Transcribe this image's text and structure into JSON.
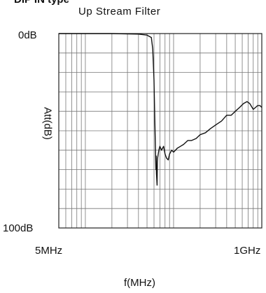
{
  "header": {
    "clipped_title": "DIP IN type"
  },
  "chart_data": {
    "type": "line",
    "title": "Up Stream Filter",
    "xlabel": "f(MHz)",
    "ylabel": "Att(dB)",
    "x_scale": "log",
    "xlim_mhz": [
      5,
      1000
    ],
    "xtick_labels": [
      "5MHz",
      "1GHz"
    ],
    "ylim_db": [
      0,
      100
    ],
    "ytick_labels": [
      "0dB",
      "100dB"
    ],
    "y_direction": "attenuation increases downward",
    "grid": true,
    "series": [
      {
        "values": [
          [
            5,
            0
          ],
          [
            20,
            0
          ],
          [
            40,
            0.3
          ],
          [
            50,
            0.8
          ],
          [
            56,
            2
          ],
          [
            58,
            8
          ],
          [
            60,
            24
          ],
          [
            61,
            40
          ],
          [
            62,
            55
          ],
          [
            62.5,
            62
          ],
          [
            63,
            70
          ],
          [
            63.5,
            63
          ],
          [
            64,
            72
          ],
          [
            65,
            78
          ],
          [
            65.5,
            66
          ],
          [
            66,
            64
          ],
          [
            68,
            60
          ],
          [
            70,
            58
          ],
          [
            73,
            60
          ],
          [
            77,
            58
          ],
          [
            80,
            62
          ],
          [
            83,
            64
          ],
          [
            87,
            65
          ],
          [
            90,
            62
          ],
          [
            95,
            60
          ],
          [
            100,
            61
          ],
          [
            110,
            59
          ],
          [
            120,
            58
          ],
          [
            130,
            57
          ],
          [
            145,
            55
          ],
          [
            160,
            55
          ],
          [
            180,
            54
          ],
          [
            200,
            52
          ],
          [
            230,
            51
          ],
          [
            260,
            49
          ],
          [
            300,
            47
          ],
          [
            350,
            45
          ],
          [
            400,
            42
          ],
          [
            450,
            42
          ],
          [
            500,
            40
          ],
          [
            560,
            38
          ],
          [
            620,
            36
          ],
          [
            680,
            35
          ],
          [
            730,
            36
          ],
          [
            800,
            39
          ],
          [
            850,
            38
          ],
          [
            900,
            37
          ],
          [
            950,
            37
          ],
          [
            1000,
            38
          ]
        ]
      }
    ]
  }
}
